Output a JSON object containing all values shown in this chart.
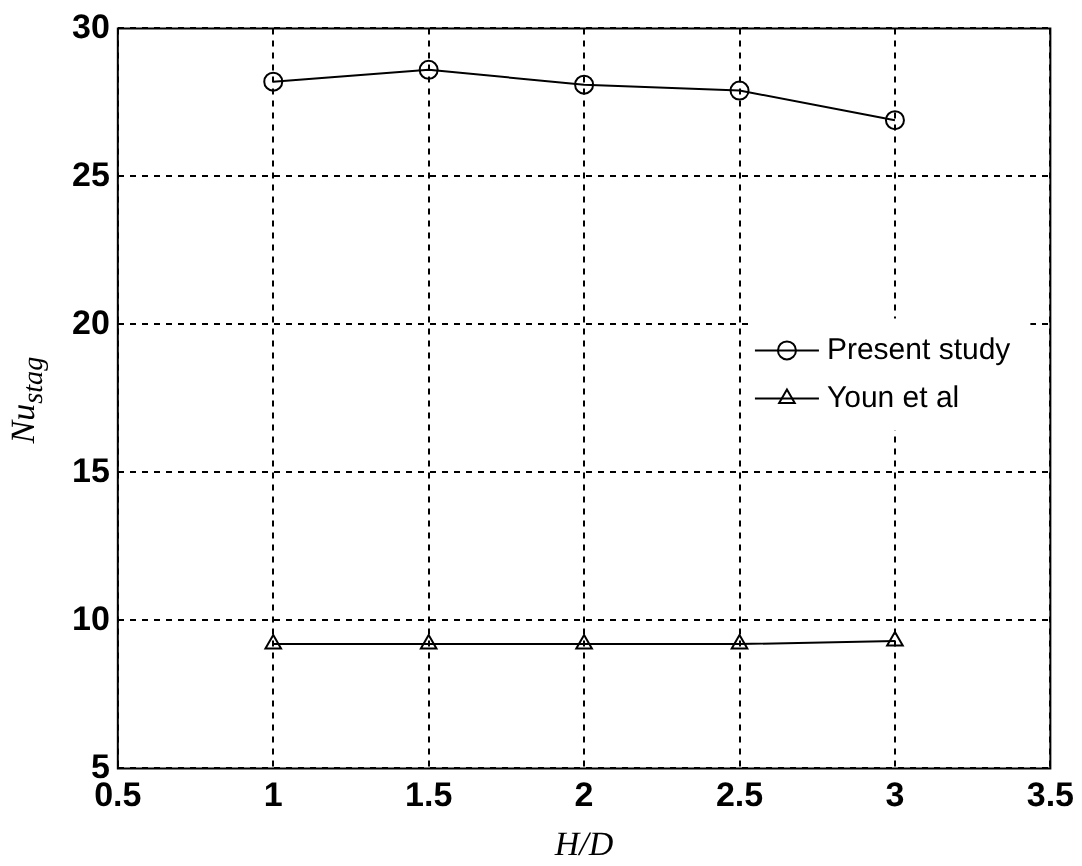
{
  "chart_data": {
    "type": "line",
    "xlabel": "H/D",
    "ylabel": "Nu$_{stag}$",
    "x": [
      1,
      1.5,
      2,
      2.5,
      3
    ],
    "series": [
      {
        "name": "Present study",
        "color": "#000000",
        "marker": "circle",
        "values": [
          28.2,
          28.6,
          28.1,
          27.9,
          26.9
        ]
      },
      {
        "name": "Youn et al",
        "color": "#000000",
        "marker": "triangle",
        "values": [
          9.2,
          9.2,
          9.2,
          9.2,
          9.3
        ]
      }
    ],
    "xlim": [
      0.5,
      3.5
    ],
    "xticks": [
      0.5,
      1,
      1.5,
      2,
      2.5,
      3,
      3.5
    ],
    "ylim": [
      5,
      30
    ],
    "yticks": [
      5,
      10,
      15,
      20,
      25,
      30
    ],
    "grid": true,
    "legend": "right",
    "line_style": "solid"
  }
}
